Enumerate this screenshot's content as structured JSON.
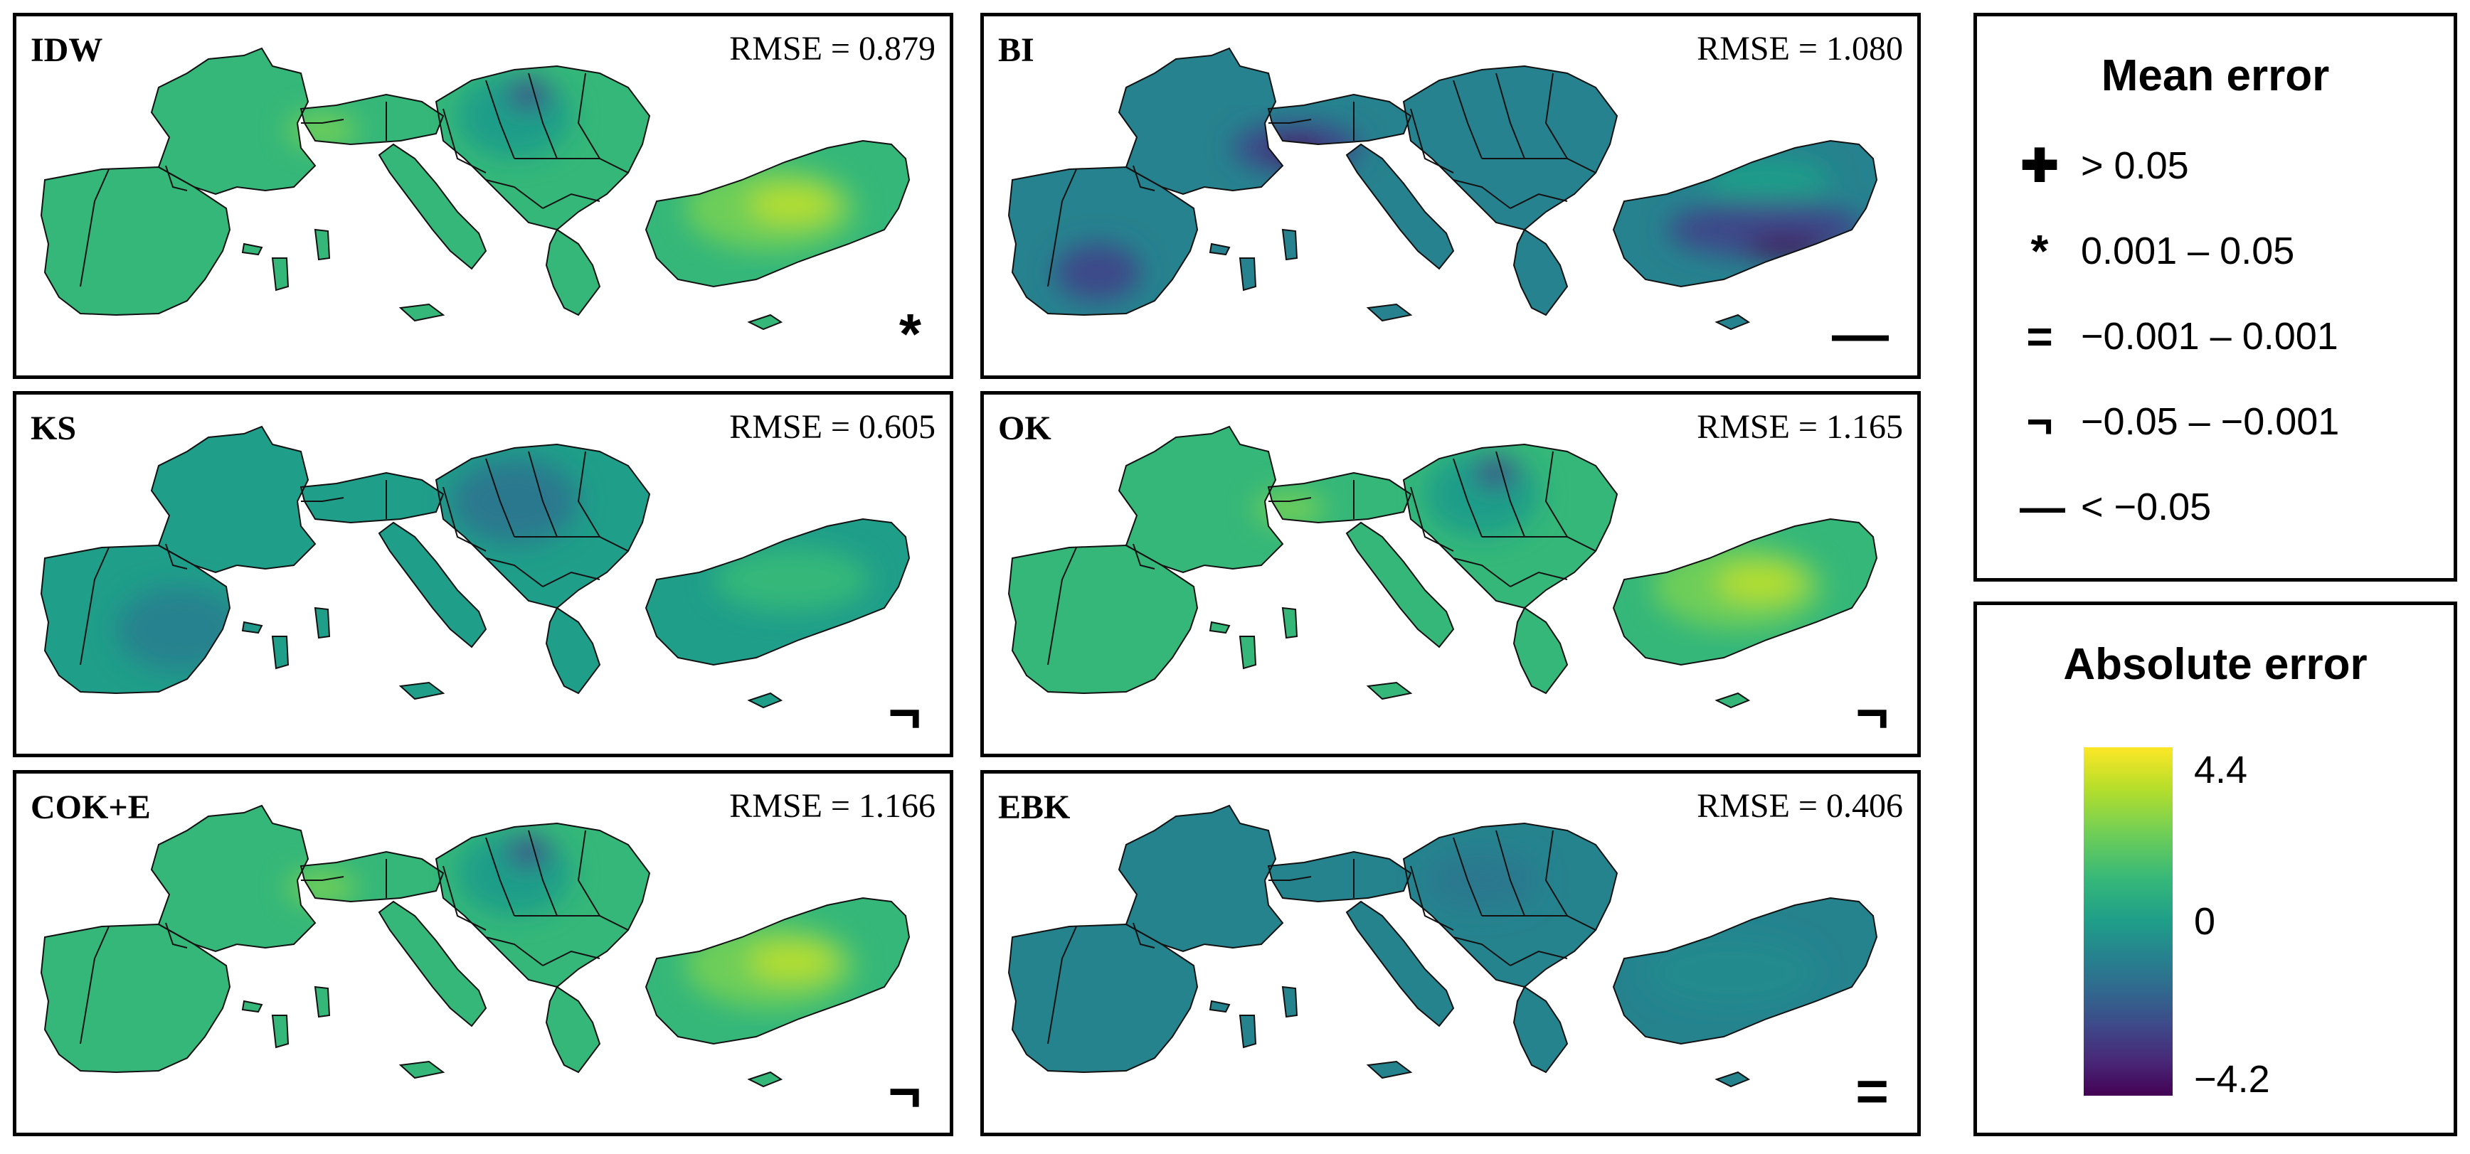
{
  "panels": [
    {
      "title": "IDW",
      "rmse": "RMSE = 0.879",
      "symbol": "*",
      "tone": "high"
    },
    {
      "title": "BI",
      "rmse": "RMSE = 1.080",
      "symbol": "—",
      "tone": "low"
    },
    {
      "title": "KS",
      "rmse": "RMSE = 0.605",
      "symbol": "¬",
      "tone": "mid"
    },
    {
      "title": "OK",
      "rmse": "RMSE = 1.165",
      "symbol": "¬",
      "tone": "high"
    },
    {
      "title": "COK+E",
      "rmse": "RMSE = 1.166",
      "symbol": "¬",
      "tone": "high"
    },
    {
      "title": "EBK",
      "rmse": "RMSE = 0.406",
      "symbol": "=",
      "tone": "flat"
    }
  ],
  "mean_error_legend": {
    "title": "Mean error",
    "items": [
      {
        "symbol": "✚",
        "label": "> 0.05"
      },
      {
        "symbol": "*",
        "label": "0.001 – 0.05"
      },
      {
        "symbol": "=",
        "label": "−0.001 – 0.001"
      },
      {
        "symbol": "¬",
        "label": "−0.05 – −0.001"
      },
      {
        "symbol": "—",
        "label": "< −0.05"
      }
    ]
  },
  "absolute_error_legend": {
    "title": "Absolute error",
    "max_label": "4.4",
    "mid_label": "0",
    "min_label": "−4.2",
    "palette": [
      "#440154",
      "#3e4989",
      "#26828e",
      "#35b779",
      "#fde725"
    ]
  }
}
